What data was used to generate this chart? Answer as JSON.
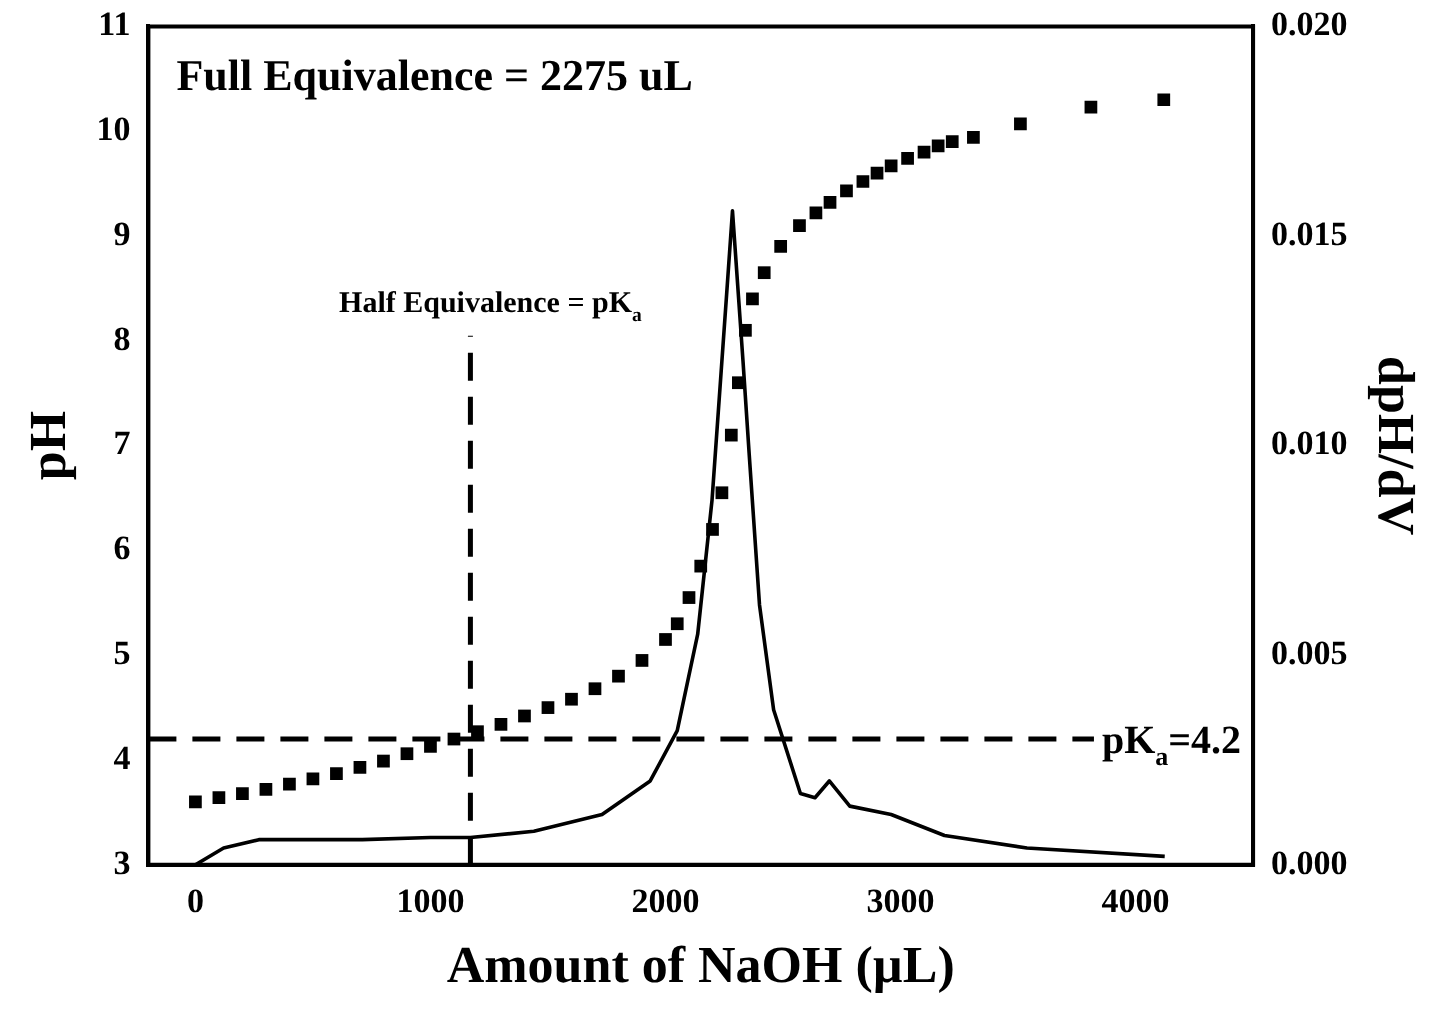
{
  "chart_data": {
    "type": "scatter",
    "xlabel": "Amount of NaOH (µL)",
    "ylabel": "pH",
    "y2label": "dpH/dV",
    "xlim": [
      -200,
      4500
    ],
    "xticks": [
      0,
      1000,
      2000,
      3000,
      4000
    ],
    "ylim": [
      3,
      11
    ],
    "yticks": [
      3,
      4,
      5,
      6,
      7,
      8,
      9,
      10,
      11
    ],
    "y2lim": [
      0,
      0.02
    ],
    "y2ticks": [
      {
        "value": 0,
        "label": "0.000"
      },
      {
        "value": 0.005,
        "label": "0.005"
      },
      {
        "value": 0.01,
        "label": "0.010"
      },
      {
        "value": 0.015,
        "label": "0.015"
      },
      {
        "value": 0.02,
        "label": "0.020"
      }
    ],
    "legend": false,
    "series": [
      {
        "marker": "square",
        "color": "#000000",
        "x": [
          0,
          100,
          200,
          300,
          400,
          500,
          600,
          700,
          800,
          900,
          1000,
          1100,
          1200,
          1300,
          1400,
          1500,
          1600,
          1700,
          1800,
          1900,
          2000,
          2050,
          2100,
          2150,
          2200,
          2240,
          2280,
          2310,
          2340,
          2370,
          2420,
          2490,
          2570,
          2640,
          2700,
          2770,
          2840,
          2900,
          2960,
          3030,
          3100,
          3160,
          3220,
          3310,
          3510,
          3810,
          4120
        ],
        "values": [
          3.6,
          3.64,
          3.68,
          3.72,
          3.77,
          3.82,
          3.87,
          3.93,
          3.99,
          4.06,
          4.13,
          4.2,
          4.27,
          4.34,
          4.42,
          4.5,
          4.58,
          4.68,
          4.8,
          4.95,
          5.15,
          5.3,
          5.55,
          5.85,
          6.2,
          6.55,
          7.1,
          7.6,
          8.1,
          8.4,
          8.65,
          8.9,
          9.1,
          9.22,
          9.32,
          9.43,
          9.52,
          9.6,
          9.67,
          9.74,
          9.8,
          9.86,
          9.9,
          9.94,
          10.07,
          10.23,
          10.3
        ]
      },
      {
        "type": "line",
        "axis": "y2",
        "color": "#000000",
        "line_style": "solid",
        "x": [
          0,
          120,
          270,
          500,
          710,
          1000,
          1170,
          1440,
          1730,
          1935,
          2050,
          2137,
          2198,
          2260,
          2285,
          2330,
          2356,
          2400,
          2460,
          2574,
          2636,
          2697,
          2784,
          2960,
          3187,
          3538,
          4124
        ],
        "values": [
          0,
          0.0004,
          0.0006,
          0.0006,
          0.0006,
          0.00065,
          0.00065,
          0.0008,
          0.0012,
          0.002,
          0.0032,
          0.0055,
          0.0087,
          0.0136,
          0.0156,
          0.012,
          0.0098,
          0.0062,
          0.0037,
          0.0017,
          0.0016,
          0.002,
          0.0014,
          0.0012,
          0.0007,
          0.0004,
          0.0002
        ]
      }
    ],
    "ref_lines": [
      {
        "axis": "y",
        "value": 4.2,
        "label": "pK$_{a}$=4.2",
        "line_style": "dashed",
        "color": "#000000"
      },
      {
        "axis": "x",
        "value": 1170,
        "label": "Half Equivalence = pK$_{a}$",
        "line_style": "dashed",
        "color": "#000000"
      }
    ],
    "annotations": [
      "Full Equivalence = 2275 uL"
    ]
  }
}
